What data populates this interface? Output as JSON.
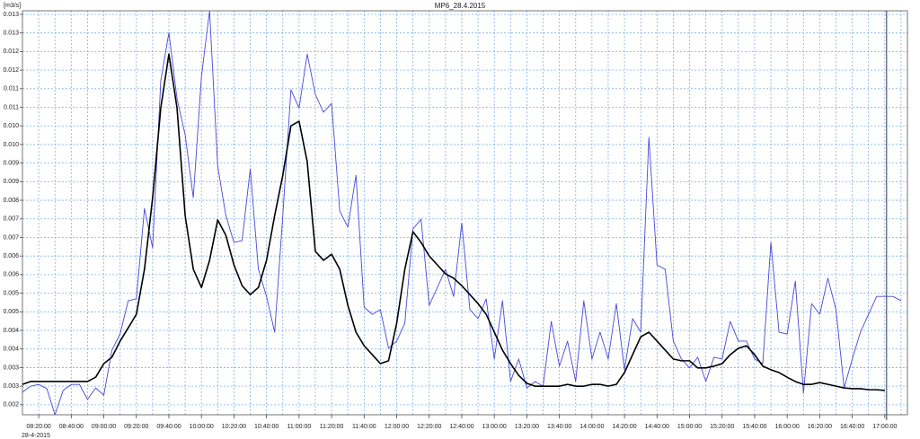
{
  "chart_data": {
    "type": "line",
    "title": "MP6_28.4.2015",
    "y_label": "[m3/s]",
    "x_date": "28-4-2015",
    "grid": true,
    "x": [
      "08:10:00",
      "08:15:00",
      "08:20:00",
      "08:25:00",
      "08:30:00",
      "08:35:00",
      "08:40:00",
      "08:45:00",
      "08:50:00",
      "08:55:00",
      "09:00:00",
      "09:05:00",
      "09:10:00",
      "09:15:00",
      "09:20:00",
      "09:25:00",
      "09:30:00",
      "09:35:00",
      "09:40:00",
      "09:45:00",
      "09:50:00",
      "09:55:00",
      "10:00:00",
      "10:05:00",
      "10:10:00",
      "10:15:00",
      "10:20:00",
      "10:25:00",
      "10:30:00",
      "10:35:00",
      "10:40:00",
      "10:45:00",
      "10:50:00",
      "10:55:00",
      "11:00:00",
      "11:05:00",
      "11:10:00",
      "11:15:00",
      "11:20:00",
      "11:25:00",
      "11:30:00",
      "11:35:00",
      "11:40:00",
      "11:45:00",
      "11:50:00",
      "11:55:00",
      "12:00:00",
      "12:05:00",
      "12:10:00",
      "12:15:00",
      "12:20:00",
      "12:25:00",
      "12:30:00",
      "12:35:00",
      "12:40:00",
      "12:45:00",
      "12:50:00",
      "12:55:00",
      "13:00:00",
      "13:05:00",
      "13:10:00",
      "13:15:00",
      "13:20:00",
      "13:25:00",
      "13:30:00",
      "13:35:00",
      "13:40:00",
      "13:45:00",
      "13:50:00",
      "13:55:00",
      "14:00:00",
      "14:05:00",
      "14:10:00",
      "14:15:00",
      "14:20:00",
      "14:25:00",
      "14:30:00",
      "14:35:00",
      "14:40:00",
      "14:45:00",
      "14:50:00",
      "14:55:00",
      "15:00:00",
      "15:05:00",
      "15:10:00",
      "15:15:00",
      "15:20:00",
      "15:25:00",
      "15:30:00",
      "15:35:00",
      "15:40:00",
      "15:45:00",
      "15:50:00",
      "15:55:00",
      "16:00:00",
      "16:05:00",
      "16:10:00",
      "16:15:00",
      "16:20:00",
      "16:25:00",
      "16:30:00",
      "16:35:00",
      "16:40:00",
      "16:45:00",
      "16:50:00",
      "16:55:00",
      "17:00:00",
      "17:05:00",
      "17:10:00"
    ],
    "series": [
      {
        "color": "#4848d8",
        "values": [
          0.00263,
          0.0028,
          0.00285,
          0.00273,
          0.002,
          0.00268,
          0.00285,
          0.00285,
          0.00243,
          0.00275,
          0.00255,
          0.00381,
          0.00426,
          0.00519,
          0.00524,
          0.00777,
          0.00667,
          0.01134,
          0.01269,
          0.01084,
          0.00983,
          0.00807,
          0.01146,
          0.0133,
          0.00895,
          0.00757,
          0.00682,
          0.00687,
          0.00888,
          0.00607,
          0.00531,
          0.00431,
          0.00757,
          0.01109,
          0.01058,
          0.01209,
          0.01096,
          0.01046,
          0.01071,
          0.0077,
          0.00725,
          0.0087,
          0.00501,
          0.00481,
          0.00494,
          0.00386,
          0.00406,
          0.00456,
          0.0072,
          0.00747,
          0.00506,
          0.00556,
          0.00607,
          0.00531,
          0.00737,
          0.00494,
          0.00469,
          0.00524,
          0.00356,
          0.00519,
          0.00293,
          0.00356,
          0.00275,
          0.00293,
          0.0028,
          0.00461,
          0.00336,
          0.00406,
          0.00293,
          0.00519,
          0.00356,
          0.00431,
          0.00356,
          0.00511,
          0.00326,
          0.00469,
          0.00431,
          0.00976,
          0.00619,
          0.00607,
          0.00406,
          0.00356,
          0.00331,
          0.00361,
          0.00293,
          0.00361,
          0.00356,
          0.00461,
          0.00406,
          0.00406,
          0.00356,
          0.00343,
          0.00682,
          0.00431,
          0.00426,
          0.00574,
          0.0026,
          0.00511,
          0.00481,
          0.00582,
          0.00494,
          0.00275,
          0.00356,
          0.00431,
          0.00481,
          0.00531,
          0.00531,
          0.00531,
          0.00519
        ]
      },
      {
        "color": "#000000",
        "values": [
          0.00285,
          0.00293,
          0.00293,
          0.00293,
          0.00293,
          0.00293,
          0.00293,
          0.00293,
          0.00293,
          0.00305,
          0.00343,
          0.00361,
          0.00406,
          0.00443,
          0.00481,
          0.00607,
          0.00807,
          0.01058,
          0.01209,
          0.01058,
          0.00757,
          0.00607,
          0.00556,
          0.00632,
          0.00745,
          0.00702,
          0.00619,
          0.00561,
          0.00536,
          0.00556,
          0.00632,
          0.00757,
          0.0087,
          0.01008,
          0.01021,
          0.00908,
          0.00657,
          0.00632,
          0.00649,
          0.00607,
          0.00506,
          0.00431,
          0.00393,
          0.00368,
          0.00343,
          0.00351,
          0.00456,
          0.00607,
          0.00712,
          0.00682,
          0.00644,
          0.00619,
          0.00594,
          0.00582,
          0.00561,
          0.00536,
          0.00511,
          0.00481,
          0.00431,
          0.00381,
          0.00343,
          0.0031,
          0.00288,
          0.0028,
          0.0028,
          0.0028,
          0.0028,
          0.00285,
          0.0028,
          0.0028,
          0.00285,
          0.00285,
          0.0028,
          0.00285,
          0.00318,
          0.00368,
          0.00418,
          0.00431,
          0.00406,
          0.00381,
          0.00356,
          0.00351,
          0.00351,
          0.00331,
          0.00331,
          0.00336,
          0.00343,
          0.00368,
          0.00386,
          0.00393,
          0.00368,
          0.00336,
          0.00326,
          0.00318,
          0.00305,
          0.00293,
          0.00285,
          0.00285,
          0.0029,
          0.00285,
          0.0028,
          0.00275,
          0.00273,
          0.00273,
          0.0027,
          0.0027,
          0.00268,
          null,
          null
        ]
      }
    ],
    "ylim": [
      0.002,
      0.0133
    ],
    "yticks": [
      {
        "value": 0.00228,
        "label": "0.002"
      },
      {
        "value": 0.0028,
        "label": "0.003"
      },
      {
        "value": 0.00332,
        "label": "0.003"
      },
      {
        "value": 0.00384,
        "label": "0.004"
      },
      {
        "value": 0.00436,
        "label": "0.004"
      },
      {
        "value": 0.00488,
        "label": "0.005"
      },
      {
        "value": 0.0054,
        "label": "0.005"
      },
      {
        "value": 0.00592,
        "label": "0.006"
      },
      {
        "value": 0.00644,
        "label": "0.006"
      },
      {
        "value": 0.00696,
        "label": "0.007"
      },
      {
        "value": 0.00748,
        "label": "0.007"
      },
      {
        "value": 0.008,
        "label": "0.008"
      },
      {
        "value": 0.00852,
        "label": "0.009"
      },
      {
        "value": 0.00904,
        "label": "0.009"
      },
      {
        "value": 0.00956,
        "label": "0.010"
      },
      {
        "value": 0.01008,
        "label": "0.010"
      },
      {
        "value": 0.0106,
        "label": "0.011"
      },
      {
        "value": 0.01112,
        "label": "0.011"
      },
      {
        "value": 0.01164,
        "label": "0.012"
      },
      {
        "value": 0.01216,
        "label": "0.012"
      },
      {
        "value": 0.01268,
        "label": "0.013"
      },
      {
        "value": 0.0132,
        "label": "0.013"
      }
    ]
  }
}
